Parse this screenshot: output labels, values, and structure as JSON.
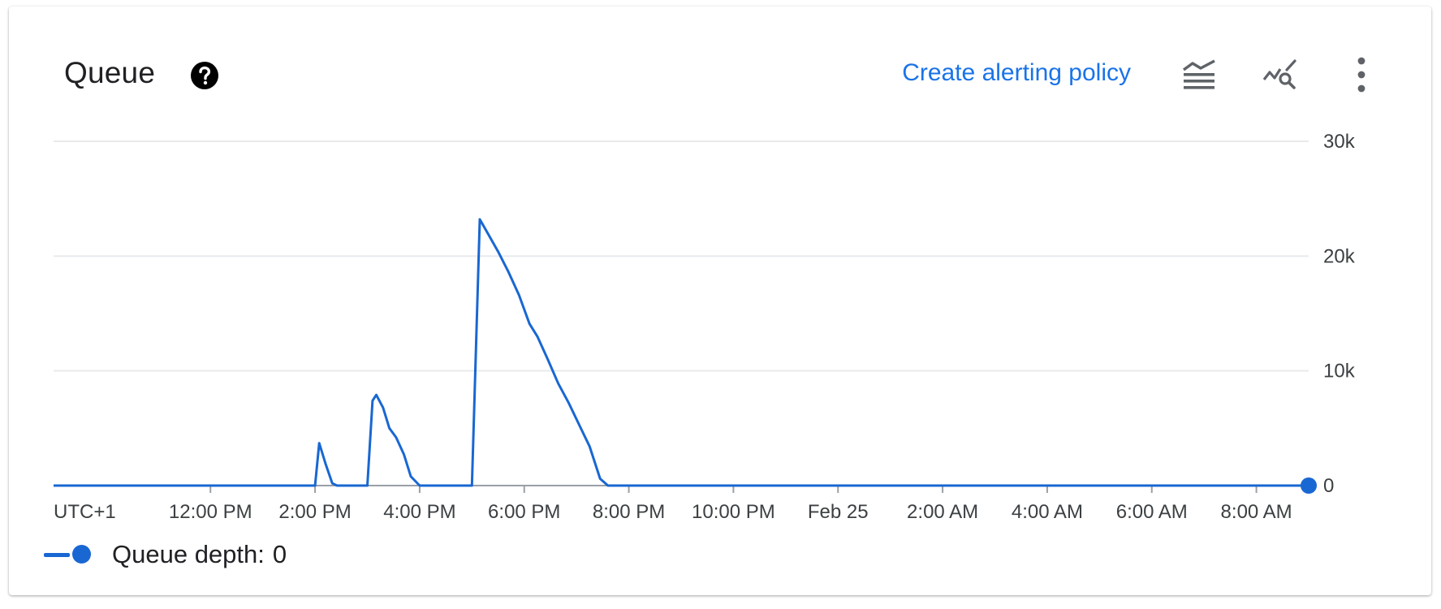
{
  "card": {
    "title": "Queue",
    "help_icon": "help-circle-icon",
    "create_alert_label": "Create alerting policy",
    "toolbar_icons": [
      "legend-toggle-icon",
      "explore-query-icon",
      "more-vert-icon"
    ]
  },
  "colors": {
    "series": "#1967d2",
    "link": "#1a73e8",
    "grid": "#e8eaed",
    "axis": "#9aa0a6",
    "icon": "#5f6368"
  },
  "legend": {
    "series_name": "Queue depth:",
    "current_value": "0"
  },
  "chart_data": {
    "type": "line",
    "title": "",
    "xlabel": "",
    "ylabel": "",
    "timezone_label": "UTC+1",
    "x_tick_labels": [
      "12:00 PM",
      "2:00 PM",
      "4:00 PM",
      "6:00 PM",
      "8:00 PM",
      "10:00 PM",
      "Feb 25",
      "2:00 AM",
      "4:00 AM",
      "6:00 AM",
      "8:00 AM"
    ],
    "x_ticks_hours": [
      12,
      14,
      16,
      18,
      20,
      22,
      24,
      26,
      28,
      30,
      32
    ],
    "x_range_hours": [
      9,
      33
    ],
    "ylim": [
      0,
      30000
    ],
    "y_ticks": [
      0,
      10000,
      20000,
      30000
    ],
    "y_tick_labels": [
      "0",
      "10k",
      "20k",
      "30k"
    ],
    "grid": true,
    "y_axis_side": "right",
    "legend_placement": "bottom-left",
    "series": [
      {
        "name": "Queue depth",
        "x_hours": [
          9,
          14.0,
          14.08,
          14.2,
          14.33,
          14.42,
          15.0,
          15.1,
          15.17,
          15.3,
          15.42,
          15.55,
          15.7,
          15.83,
          16.0,
          16.08,
          16.2,
          16.33,
          17.0,
          17.15,
          17.3,
          17.5,
          17.7,
          17.9,
          18.1,
          18.25,
          18.45,
          18.65,
          18.85,
          19.05,
          19.25,
          19.45,
          19.6,
          19.8,
          19.95,
          20.1,
          20.15,
          20.25,
          33
        ],
        "y": [
          0,
          0,
          3700,
          1900,
          200,
          0,
          0,
          7400,
          7900,
          6800,
          5000,
          4200,
          2700,
          800,
          0,
          0,
          0,
          0,
          0,
          23200,
          22000,
          20400,
          18600,
          16600,
          14100,
          13000,
          11000,
          8900,
          7200,
          5300,
          3400,
          600,
          0,
          0,
          0,
          0,
          0,
          0,
          0
        ],
        "last_value": 0
      }
    ]
  }
}
